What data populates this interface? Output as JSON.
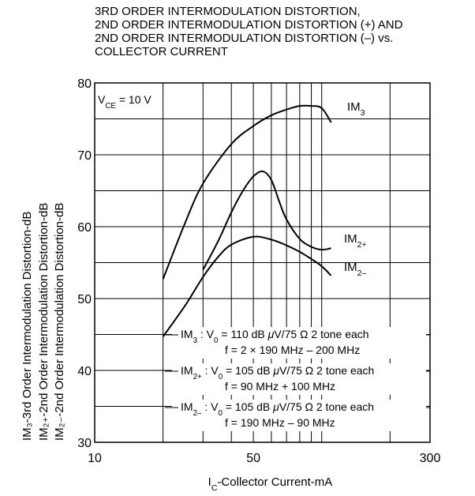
{
  "title_lines": [
    "3RD ORDER INTERMODULATION DISTORTION,",
    "2ND ORDER INTERMODULATION DISTORTION (+) AND",
    "2ND ORDER INTERMODULATION DISTORTION (–) vs.",
    "COLLECTOR CURRENT"
  ],
  "ylabel_lines": [
    "IM₃-3rd Order Intermodulation Distortion-dB",
    "IM₂₊-2nd Order Intermodulation Distortion-dB",
    "IM₂₋-2nd Order Intermodulation Distortion-dB"
  ],
  "condition": "VCE = 10 V",
  "legend": [
    {
      "line1": "IM3  : V0 = 110 dB μV/75 Ω 2 tone each",
      "line2": "f = 2 × 190 MHz – 200 MHz"
    },
    {
      "line1": "IM2+ : V0 = 105 dB μV/75 Ω 2 tone each",
      "line2": "f = 90 MHz + 100 MHz"
    },
    {
      "line1": "IM2– : V0 = 105 dB μV/75 Ω 2 tone each",
      "line2": "f = 190 MHz – 90 MHz"
    }
  ],
  "chart_data": {
    "type": "line",
    "xlabel": "IC-Collector Current-mA",
    "ylabel": "",
    "x_scale": "log",
    "xlim": [
      10,
      300
    ],
    "ylim": [
      30,
      80
    ],
    "x_ticks": [
      10,
      50,
      300
    ],
    "y_ticks": [
      30,
      40,
      50,
      60,
      70,
      80
    ],
    "grid": true,
    "series": [
      {
        "name": "IM3",
        "x": [
          20,
          25,
          30,
          40,
          50,
          60,
          70,
          80,
          90,
          100,
          110
        ],
        "y": [
          52.7,
          60.5,
          66.0,
          71.5,
          74.0,
          75.5,
          76.3,
          76.8,
          76.8,
          76.5,
          74.5
        ]
      },
      {
        "name": "IM2+",
        "x": [
          30,
          35,
          40,
          45,
          50,
          55,
          60,
          65,
          70,
          80,
          90,
          100,
          110
        ],
        "y": [
          54.0,
          58.0,
          62.0,
          65.0,
          67.0,
          67.7,
          66.5,
          63.5,
          61.0,
          58.3,
          57.2,
          56.8,
          57.0
        ]
      },
      {
        "name": "IM2–",
        "x": [
          20,
          25,
          30,
          35,
          40,
          50,
          60,
          70,
          80,
          90,
          100,
          110
        ],
        "y": [
          44.7,
          49.0,
          53.0,
          55.8,
          57.5,
          58.6,
          58.2,
          57.4,
          56.5,
          55.5,
          54.5,
          53.2
        ]
      }
    ],
    "curve_labels": [
      "IM3",
      "IM2+",
      "IM2–"
    ]
  }
}
